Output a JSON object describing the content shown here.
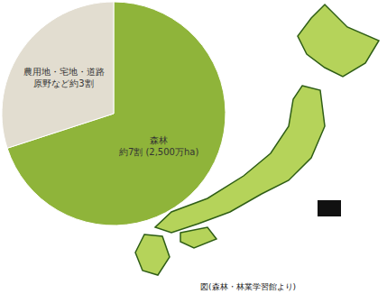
{
  "chart_data": {
    "type": "pie",
    "values": [
      7,
      3
    ],
    "value_labels": [
      "森林\n約7割 (2,500万ha)",
      "農用地・宅地・道路\n原野など約3割"
    ],
    "colors": [
      "#8fb43a",
      "#e2ddd0"
    ],
    "data_labels": true,
    "caption": "図(森林・林業学習館より)"
  }
}
